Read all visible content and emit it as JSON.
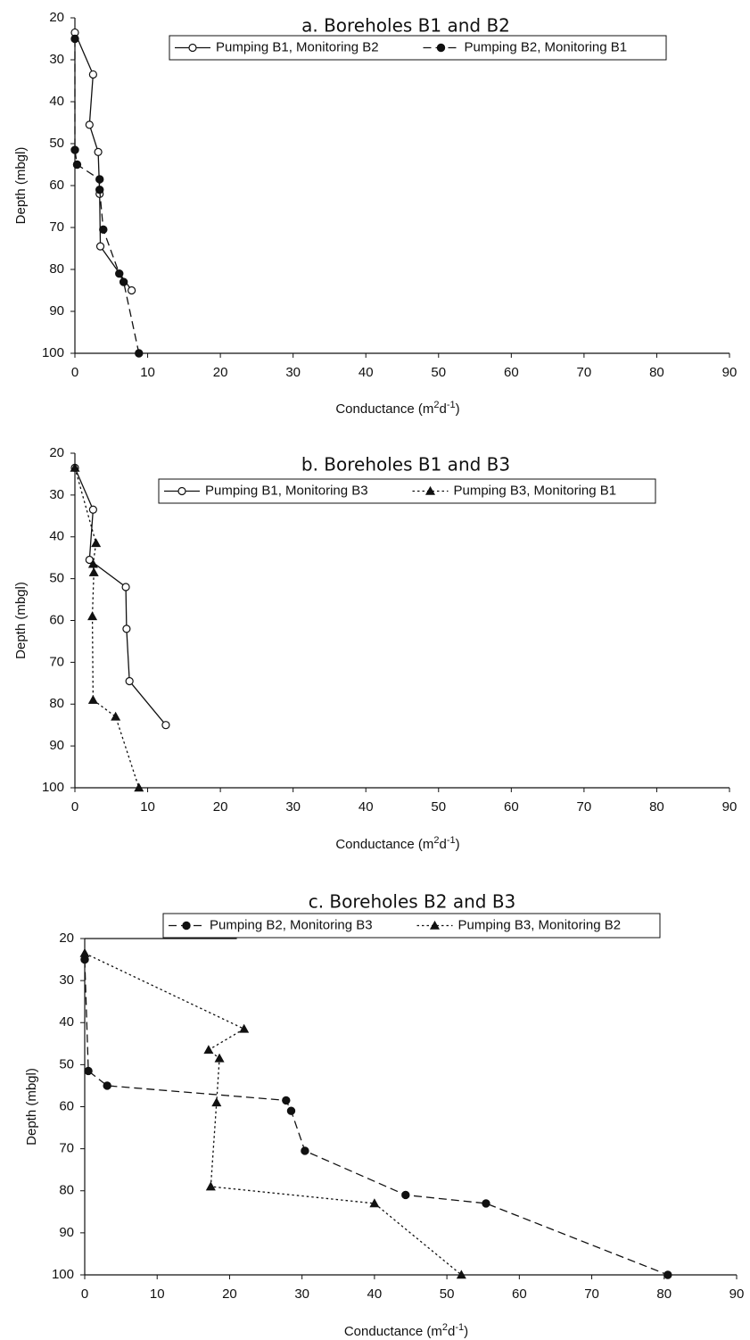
{
  "chart_data": [
    {
      "type": "line",
      "title": "a. Boreholes B1 and B2",
      "xlabel": "Conductance (m²d⁻¹)",
      "ylabel": "Depth (mbgl)",
      "xlim": [
        0,
        90
      ],
      "ylim": [
        20,
        100
      ],
      "y_inverted": true,
      "x_ticks": [
        0,
        10,
        20,
        30,
        40,
        50,
        60,
        70,
        80,
        90
      ],
      "y_ticks": [
        20,
        30,
        40,
        50,
        60,
        70,
        80,
        90,
        100
      ],
      "grid": false,
      "legend_position": "top",
      "series": [
        {
          "name": "Pumping B1, Monitoring B2",
          "line_style": "solid",
          "marker": "open-circle",
          "points": [
            [
              0,
              23.5
            ],
            [
              2.5,
              33.5
            ],
            [
              2,
              45.5
            ],
            [
              3.2,
              52
            ],
            [
              3.4,
              62
            ],
            [
              3.5,
              74.5
            ],
            [
              7.8,
              85
            ]
          ]
        },
        {
          "name": "Pumping B2, Monitoring B1",
          "line_style": "dashed",
          "marker": "filled-circle",
          "points": [
            [
              0,
              25
            ],
            [
              0,
              51.5
            ],
            [
              0.3,
              55
            ],
            [
              3.4,
              58.5
            ],
            [
              3.4,
              61
            ],
            [
              3.9,
              70.5
            ],
            [
              6.1,
              81
            ],
            [
              6.7,
              83
            ],
            [
              8.8,
              100
            ]
          ]
        }
      ]
    },
    {
      "type": "line",
      "title": "b. Boreholes B1 and B3",
      "xlabel": "Conductance (m²d⁻¹)",
      "ylabel": "Depth (mbgl)",
      "xlim": [
        0,
        90
      ],
      "ylim": [
        20,
        100
      ],
      "y_inverted": true,
      "x_ticks": [
        0,
        10,
        20,
        30,
        40,
        50,
        60,
        70,
        80,
        90
      ],
      "y_ticks": [
        20,
        30,
        40,
        50,
        60,
        70,
        80,
        90,
        100
      ],
      "grid": false,
      "legend_position": "top",
      "series": [
        {
          "name": "Pumping B1, Monitoring B3",
          "line_style": "solid",
          "marker": "open-circle",
          "points": [
            [
              0,
              23.5
            ],
            [
              2.5,
              33.5
            ],
            [
              2,
              45.5
            ],
            [
              7,
              52
            ],
            [
              7.1,
              62
            ],
            [
              7.5,
              74.5
            ],
            [
              12.5,
              85
            ]
          ]
        },
        {
          "name": "Pumping B3, Monitoring B1",
          "line_style": "dotted",
          "marker": "filled-triangle",
          "points": [
            [
              0,
              23.5
            ],
            [
              2.9,
              41.5
            ],
            [
              2.5,
              46.5
            ],
            [
              2.6,
              48.5
            ],
            [
              2.4,
              59
            ],
            [
              2.5,
              79
            ],
            [
              5.6,
              83
            ],
            [
              8.8,
              100
            ]
          ]
        }
      ]
    },
    {
      "type": "line",
      "title": "c. Boreholes B2 and B3",
      "xlabel": "Conductance (m²d⁻¹)",
      "ylabel": "Depth (mbgl)",
      "xlim": [
        0,
        90
      ],
      "ylim": [
        20,
        100
      ],
      "y_inverted": true,
      "x_ticks": [
        0,
        10,
        20,
        30,
        40,
        50,
        60,
        70,
        80,
        90
      ],
      "y_ticks": [
        20,
        30,
        40,
        50,
        60,
        70,
        80,
        90,
        100
      ],
      "grid": false,
      "legend_position": "top",
      "series": [
        {
          "name": "Pumping B2, Monitoring B3",
          "line_style": "dashed",
          "marker": "filled-circle",
          "points": [
            [
              0,
              25
            ],
            [
              0.5,
              51.5
            ],
            [
              3.1,
              55
            ],
            [
              27.8,
              58.5
            ],
            [
              28.5,
              61
            ],
            [
              30.4,
              70.5
            ],
            [
              44.3,
              81
            ],
            [
              55.4,
              83
            ],
            [
              80.5,
              100
            ]
          ]
        },
        {
          "name": "Pumping B3, Monitoring B2",
          "line_style": "dotted",
          "marker": "filled-triangle",
          "points": [
            [
              0,
              23.5
            ],
            [
              22,
              41.5
            ],
            [
              17.1,
              46.5
            ],
            [
              18.6,
              48.5
            ],
            [
              18.2,
              59
            ],
            [
              17.4,
              79
            ],
            [
              40,
              83
            ],
            [
              52,
              100
            ]
          ]
        }
      ]
    }
  ]
}
